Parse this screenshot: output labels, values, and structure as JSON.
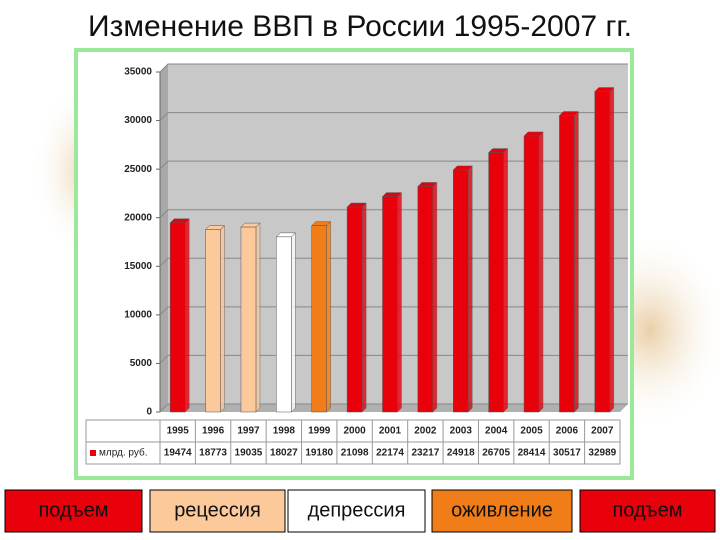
{
  "chart_data": {
    "type": "bar",
    "title": "Изменение ВВП в России 1995-2007 гг.",
    "categories": [
      "1995",
      "1996",
      "1997",
      "1998",
      "1999",
      "2000",
      "2001",
      "2002",
      "2003",
      "2004",
      "2005",
      "2006",
      "2007"
    ],
    "series": [
      {
        "name": "млрд. руб.",
        "color": "#e8000b",
        "values": [
          19474,
          18773,
          19035,
          18027,
          19180,
          21098,
          22174,
          23217,
          24918,
          26705,
          28414,
          30517,
          32989
        ],
        "colors": [
          "#e8000b",
          "#fbc99a",
          "#fbc99a",
          "#ffffff",
          "#f07d18",
          "#e8000b",
          "#e8000b",
          "#e8000b",
          "#e8000b",
          "#e8000b",
          "#e8000b",
          "#e8000b",
          "#e8000b"
        ]
      }
    ],
    "ylim": [
      0,
      35000
    ],
    "yticks": [
      0,
      5000,
      10000,
      15000,
      20000,
      25000,
      30000,
      35000
    ],
    "grid": true,
    "phases": [
      {
        "label": "подъем",
        "color": "#e8000b"
      },
      {
        "label": "рецессия",
        "color": "#fbc99a"
      },
      {
        "label": "депрессия",
        "color": "#ffffff"
      },
      {
        "label": "оживление",
        "color": "#f07d18"
      },
      {
        "label": "подъем",
        "color": "#e8000b"
      }
    ]
  }
}
